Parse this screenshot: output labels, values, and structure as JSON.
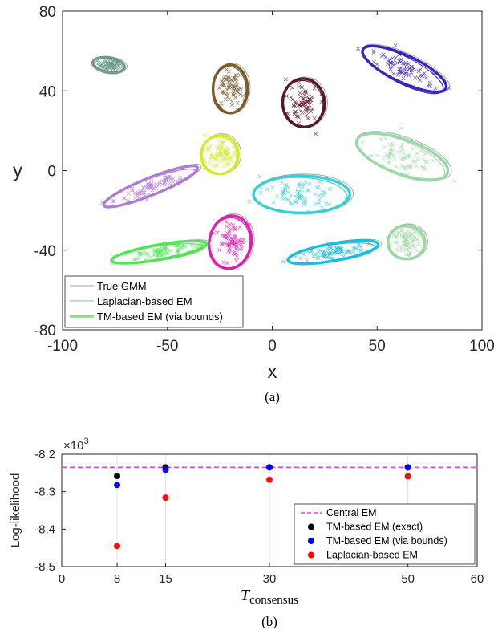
{
  "chart_data": [
    {
      "type": "scatter",
      "panel_caption": "(a)",
      "xlabel": "x",
      "ylabel": "y",
      "xlim": [
        -100,
        100
      ],
      "ylim": [
        -80,
        80
      ],
      "xticks": [
        "-100",
        "-50",
        "0",
        "50",
        "100"
      ],
      "yticks": [
        "-80",
        "-40",
        "0",
        "40",
        "80"
      ],
      "legend": {
        "placement": "bottom-left",
        "entries": [
          "True GMM",
          "Laplacian-based EM",
          "TM-based EM (via bounds)"
        ]
      },
      "clusters": [
        {
          "color": "#6f9a8f",
          "mean": [
            -78,
            53
          ],
          "sx": 3,
          "sy": 13,
          "angle": 80
        },
        {
          "color": "#7d5a2c",
          "mean": [
            -20,
            41
          ],
          "sx": 10,
          "sy": 14,
          "angle": 90
        },
        {
          "color": "#5a1626",
          "mean": [
            15,
            34
          ],
          "sx": 10,
          "sy": 17,
          "angle": 95
        },
        {
          "color": "#3a23b8",
          "mean": [
            63,
            51
          ],
          "sx": 19,
          "sy": 11,
          "angle": -25
        },
        {
          "color": "#d2ea28",
          "mean": [
            -25,
            8
          ],
          "sx": 8,
          "sy": 15,
          "angle": 80
        },
        {
          "color": "#b07bd6",
          "mean": [
            -58,
            -8
          ],
          "sx": 21,
          "sy": 7,
          "angle": 22
        },
        {
          "color": "#34d0d6",
          "mean": [
            14,
            -12
          ],
          "sx": 20,
          "sy": 15,
          "angle": 0
        },
        {
          "color": "#9ad9a6",
          "mean": [
            62,
            7
          ],
          "sx": 20,
          "sy": 14,
          "angle": -20
        },
        {
          "color": "#e21bb6",
          "mean": [
            -20,
            -36
          ],
          "sx": 11,
          "sy": 17,
          "angle": 80
        },
        {
          "color": "#18bde2",
          "mean": [
            29,
            -41
          ],
          "sx": 19,
          "sy": 7,
          "angle": 10
        },
        {
          "color": "#4ee651",
          "mean": [
            -54,
            -41
          ],
          "sx": 20,
          "sy": 6,
          "angle": 10
        },
        {
          "color": "#9bd6a3",
          "mean": [
            64,
            -36
          ],
          "sx": 7,
          "sy": 15,
          "angle": 88
        }
      ]
    },
    {
      "type": "scatter",
      "panel_caption": "(b)",
      "xlabel_main": "T",
      "xlabel_sub": "consensus",
      "ylabel": "Log-likelihood",
      "exponent_label": "×10",
      "exponent_power": "3",
      "xlim": [
        0,
        60
      ],
      "ylim": [
        -8.5,
        -8.2
      ],
      "xticks": [
        "0",
        "8",
        "15",
        "30",
        "50",
        "60"
      ],
      "yticks": [
        "-8.2",
        "-8.3",
        "-8.4",
        "-8.5"
      ],
      "reference_line": {
        "name": "Central EM",
        "y": -8.235,
        "color": "#ff33ff"
      },
      "legend": {
        "placement": "right",
        "entries": [
          "Central EM",
          "TM-based EM (exact)",
          "TM-based EM (via bounds)",
          "Laplacian-based EM"
        ]
      },
      "series": [
        {
          "name": "TM-based EM (exact)",
          "color": "#000000",
          "x": [
            8,
            15,
            30,
            50
          ],
          "y": [
            -8.258,
            -8.235,
            -8.235,
            -8.235
          ]
        },
        {
          "name": "TM-based EM (via bounds)",
          "color": "#0000ff",
          "x": [
            8,
            15,
            30,
            50
          ],
          "y": [
            -8.282,
            -8.242,
            -8.235,
            -8.235
          ]
        },
        {
          "name": "Laplacian-based EM",
          "color": "#ff0000",
          "x": [
            8,
            15,
            30,
            50
          ],
          "y": [
            -8.445,
            -8.316,
            -8.268,
            -8.259
          ]
        }
      ]
    }
  ]
}
